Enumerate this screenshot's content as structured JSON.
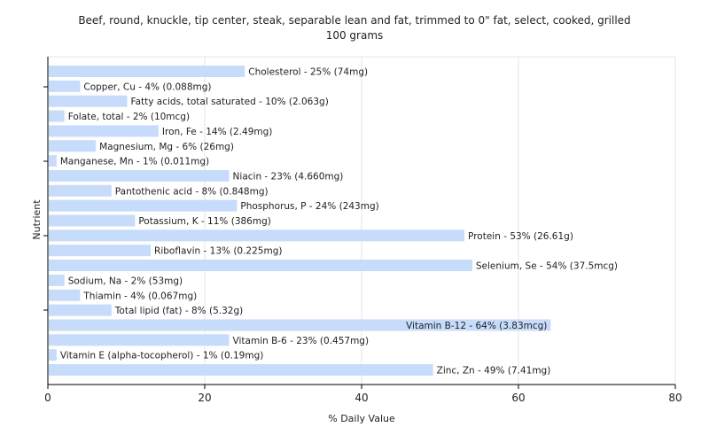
{
  "chart_data": {
    "type": "bar",
    "orientation": "horizontal",
    "title": "Beef, round, knuckle, tip center, steak, separable lean and fat, trimmed to 0\" fat, select, cooked, grilled",
    "subtitle": "100 grams",
    "xlabel": "% Daily Value",
    "ylabel": "Nutrient",
    "xlim": [
      0,
      80
    ],
    "xticks": [
      0,
      20,
      40,
      60,
      80
    ],
    "grid": true,
    "bar_color": "#c6dcfa",
    "categories": [
      "Cholesterol",
      "Copper, Cu",
      "Fatty acids, total saturated",
      "Folate, total",
      "Iron, Fe",
      "Magnesium, Mg",
      "Manganese, Mn",
      "Niacin",
      "Pantothenic acid",
      "Phosphorus, P",
      "Potassium, K",
      "Protein",
      "Riboflavin",
      "Selenium, Se",
      "Sodium, Na",
      "Thiamin",
      "Total lipid (fat)",
      "Vitamin B-12",
      "Vitamin B-6",
      "Vitamin E (alpha-tocopherol)",
      "Zinc, Zn"
    ],
    "values": [
      25,
      4,
      10,
      2,
      14,
      6,
      1,
      23,
      8,
      24,
      11,
      53,
      13,
      54,
      2,
      4,
      8,
      64,
      23,
      1,
      49
    ],
    "labels": [
      "Cholesterol - 25% (74mg)",
      "Copper, Cu - 4% (0.088mg)",
      "Fatty acids, total saturated - 10% (2.063g)",
      "Folate, total - 2% (10mcg)",
      "Iron, Fe - 14% (2.49mg)",
      "Magnesium, Mg - 6% (26mg)",
      "Manganese, Mn - 1% (0.011mg)",
      "Niacin - 23% (4.660mg)",
      "Pantothenic acid - 8% (0.848mg)",
      "Phosphorus, P - 24% (243mg)",
      "Potassium, K - 11% (386mg)",
      "Protein - 53% (26.61g)",
      "Riboflavin - 13% (0.225mg)",
      "Selenium, Se - 54% (37.5mcg)",
      "Sodium, Na - 2% (53mg)",
      "Thiamin - 4% (0.067mg)",
      "Total lipid (fat) - 8% (5.32g)",
      "Vitamin B-12 - 64% (3.83mcg)",
      "Vitamin B-6 - 23% (0.457mg)",
      "Vitamin E (alpha-tocopherol) - 1% (0.19mg)",
      "Zinc, Zn - 49% (7.41mg)"
    ]
  }
}
